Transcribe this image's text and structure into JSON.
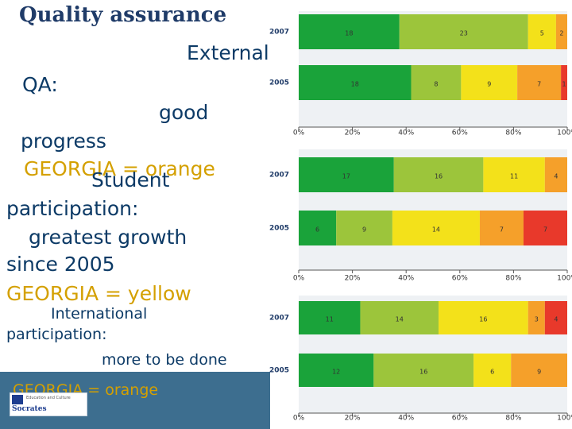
{
  "slide": {
    "title": "Quality assurance",
    "external": "External",
    "qa": "QA:",
    "good": "good",
    "progress": "progress",
    "georgia_orange_1": "GEORGIA = orange",
    "student": "Student",
    "participation": "participation:",
    "greatest_growth": "greatest growth",
    "since_2005": "since 2005",
    "georgia_yellow": "GEORGIA = yellow",
    "international": "International",
    "participation_2": "participation:",
    "more_to_be_done": "more to be done",
    "georgia_orange_2": "GEORGIA = orange",
    "logo_text": "Socrates",
    "logo_sub": "Education and Culture"
  },
  "colors": {
    "segments": [
      "#1aa33a",
      "#9cc53b",
      "#f3e11a",
      "#f5a02a",
      "#e8392b"
    ],
    "text": "#0c3a66",
    "highlight": "#d4a000",
    "band": "#3d6e8f"
  },
  "chart_data": [
    {
      "type": "bar",
      "orientation": "horizontal",
      "stacked": true,
      "percent": true,
      "categories": [
        "2007",
        "2005"
      ],
      "segments": [
        {
          "color": "#1aa33a",
          "values": [
            18,
            18
          ]
        },
        {
          "color": "#9cc53b",
          "values": [
            23,
            8
          ]
        },
        {
          "color": "#f3e11a",
          "values": [
            5,
            9
          ]
        },
        {
          "color": "#f5a02a",
          "values": [
            2,
            7
          ]
        },
        {
          "color": "#e8392b",
          "values": [
            0,
            1
          ]
        }
      ],
      "xticks": [
        "0%",
        "20%",
        "40%",
        "60%",
        "80%",
        "100%"
      ]
    },
    {
      "type": "bar",
      "orientation": "horizontal",
      "stacked": true,
      "percent": true,
      "categories": [
        "2007",
        "2005"
      ],
      "segments": [
        {
          "color": "#1aa33a",
          "values": [
            17,
            6
          ]
        },
        {
          "color": "#9cc53b",
          "values": [
            16,
            9
          ]
        },
        {
          "color": "#f3e11a",
          "values": [
            11,
            14
          ]
        },
        {
          "color": "#f5a02a",
          "values": [
            4,
            7
          ]
        },
        {
          "color": "#e8392b",
          "values": [
            0,
            7
          ]
        }
      ],
      "xticks": [
        "0%",
        "20%",
        "40%",
        "60%",
        "80%",
        "100%"
      ]
    },
    {
      "type": "bar",
      "orientation": "horizontal",
      "stacked": true,
      "percent": true,
      "categories": [
        "2007",
        "2005"
      ],
      "segments": [
        {
          "color": "#1aa33a",
          "values": [
            11,
            12
          ]
        },
        {
          "color": "#9cc53b",
          "values": [
            14,
            16
          ]
        },
        {
          "color": "#f3e11a",
          "values": [
            16,
            6
          ]
        },
        {
          "color": "#f5a02a",
          "values": [
            3,
            9
          ]
        },
        {
          "color": "#e8392b",
          "values": [
            4,
            0
          ]
        }
      ],
      "xticks": [
        "0%",
        "20%",
        "40%",
        "60%",
        "80%",
        "100%"
      ]
    }
  ]
}
